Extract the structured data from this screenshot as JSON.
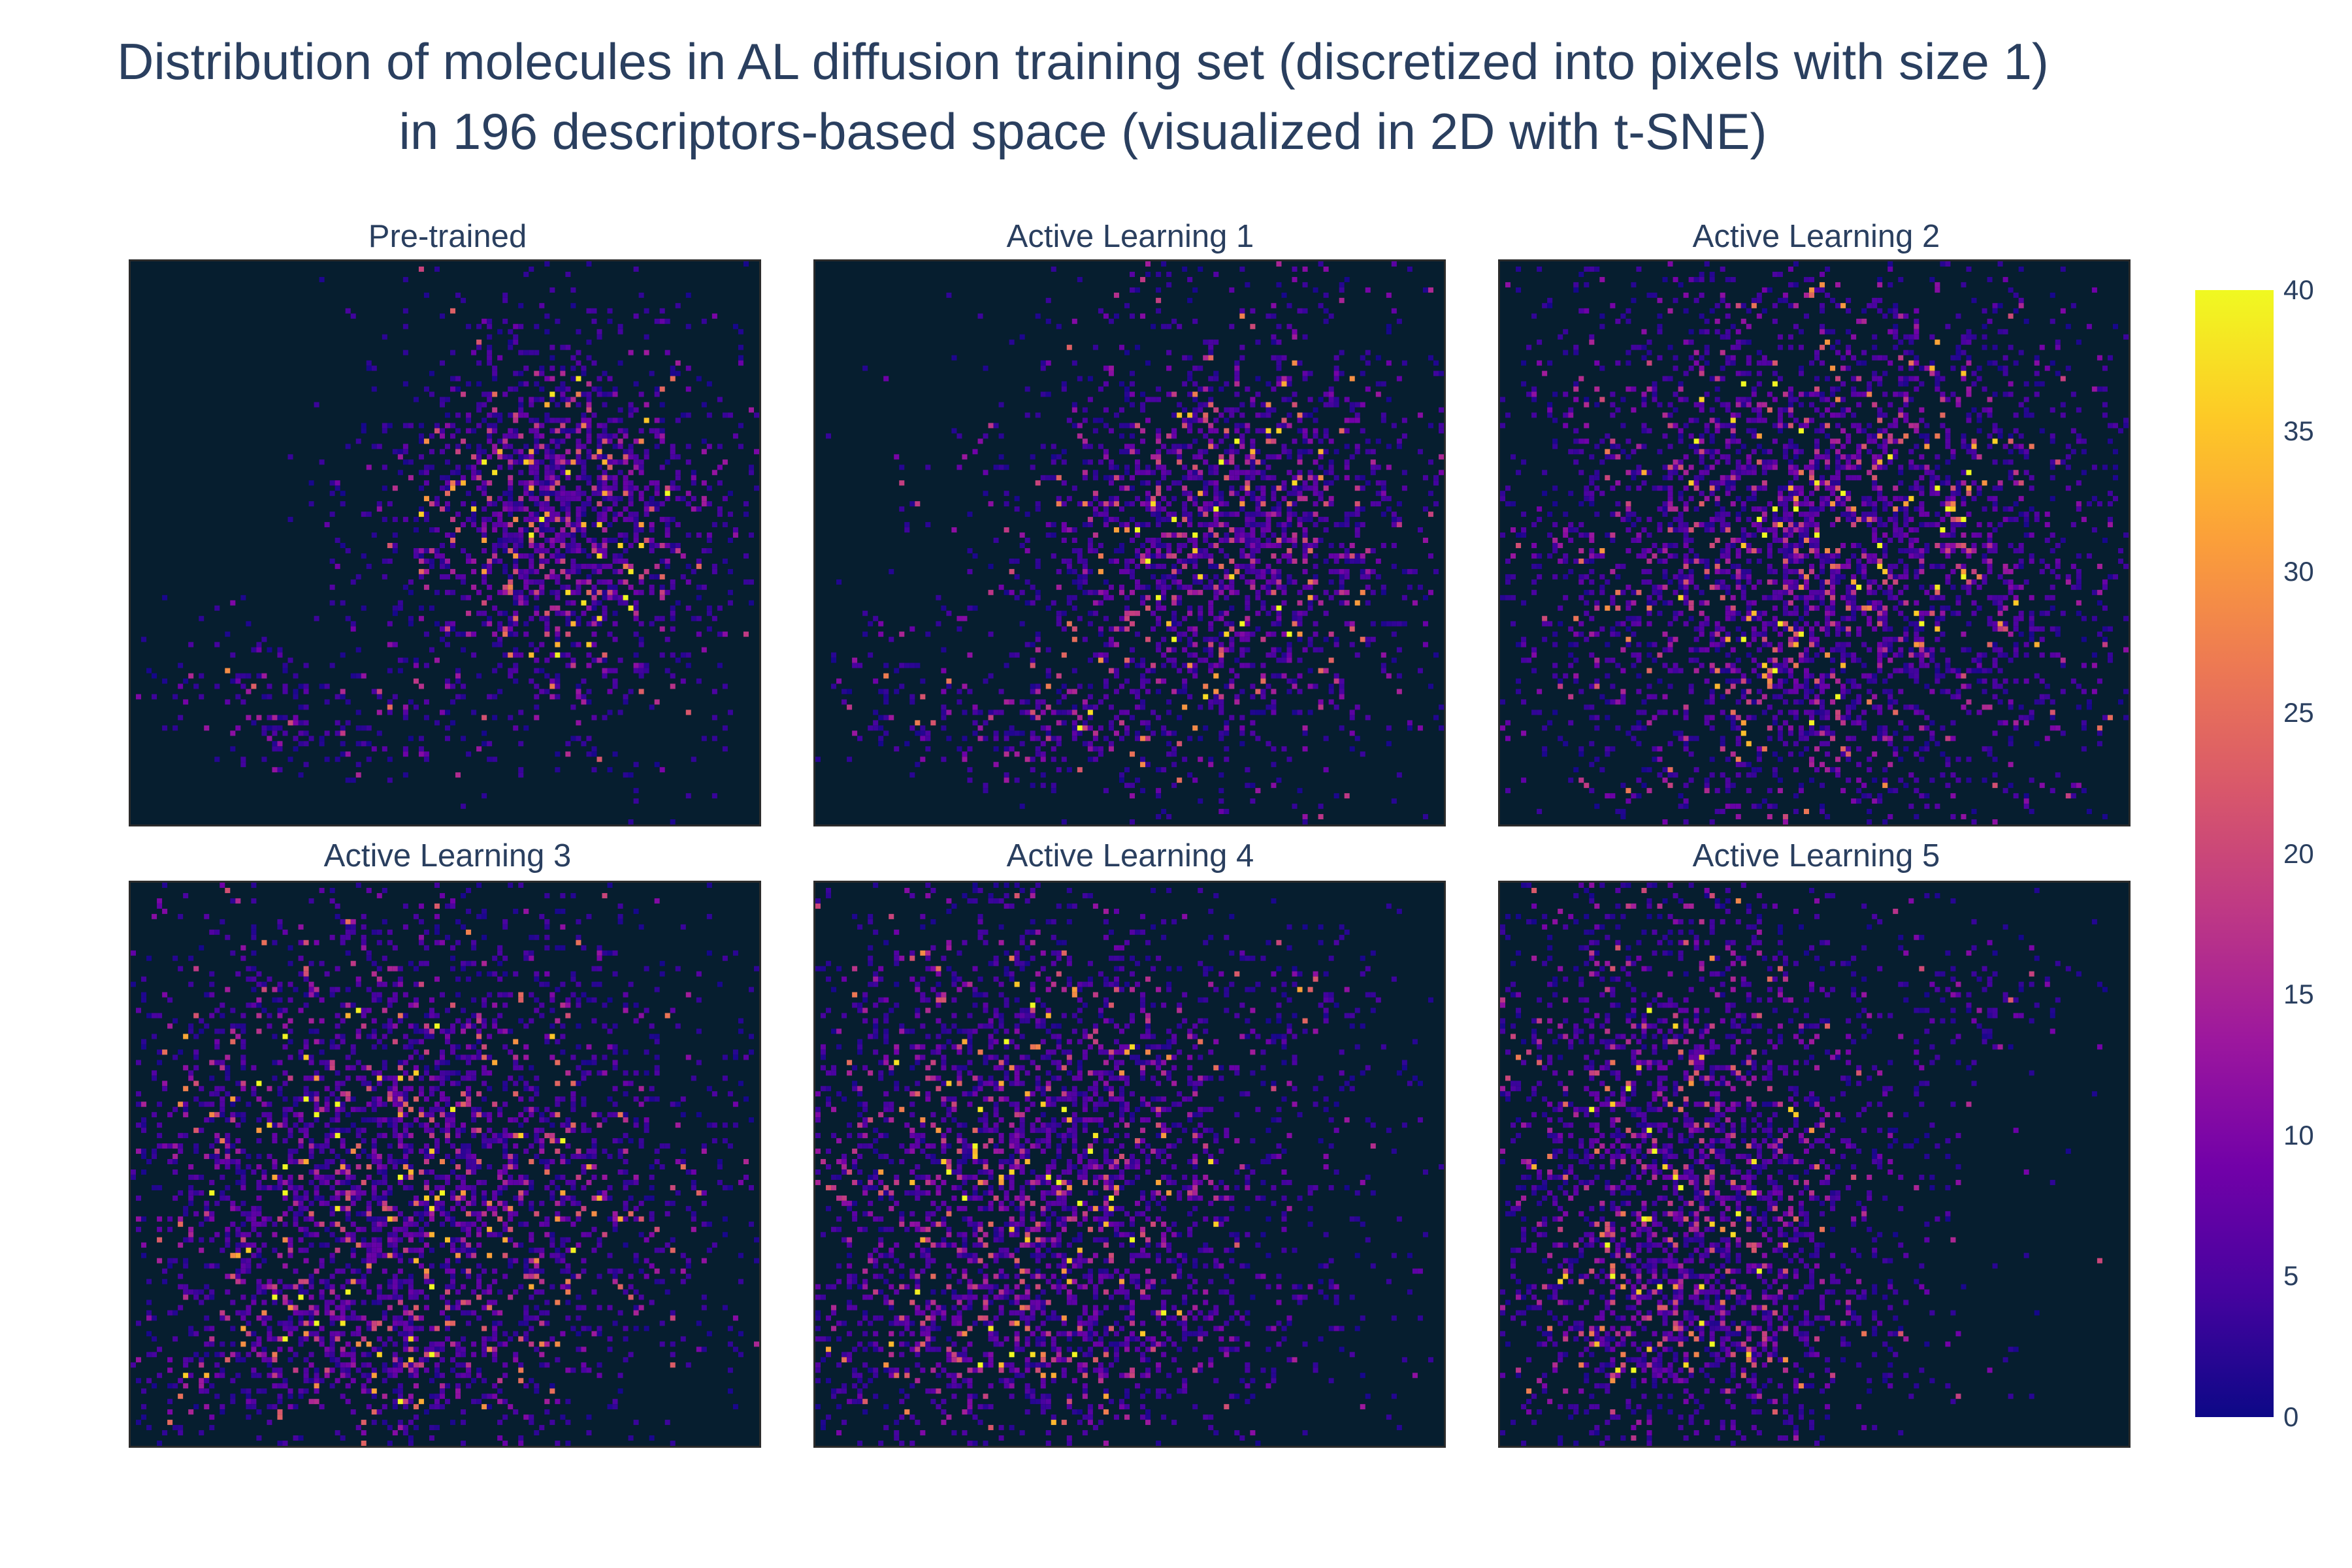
{
  "title": {
    "line1": "Distribution of molecules in AL diffusion training set (discretized into pixels with size 1)",
    "line2": "in 196 descriptors-based space (visualized in 2D with t-SNE)"
  },
  "colorbar": {
    "min": 0,
    "max": 40,
    "ticks": [
      "0",
      "5",
      "10",
      "15",
      "20",
      "25",
      "30",
      "35",
      "40"
    ],
    "colorscale": [
      "#0d0887",
      "#46039f",
      "#7201a8",
      "#9c179e",
      "#bd3786",
      "#d8576b",
      "#ed7953",
      "#fb9f3a",
      "#fdca26",
      "#f0f921"
    ],
    "zero_color": "#061e2f"
  },
  "chart_data": [
    {
      "type": "heatmap",
      "title": "Pre-trained",
      "seed": 11,
      "pattern": "right-cluster"
    },
    {
      "type": "heatmap",
      "title": "Active Learning 1",
      "seed": 23,
      "pattern": "right-cluster-spread"
    },
    {
      "type": "heatmap",
      "title": "Active Learning 2",
      "seed": 37,
      "pattern": "round-blob"
    },
    {
      "type": "heatmap",
      "title": "Active Learning 3",
      "seed": 41,
      "pattern": "round-blob-left"
    },
    {
      "type": "heatmap",
      "title": "Active Learning 4",
      "seed": 53,
      "pattern": "round-blob-left-arc"
    },
    {
      "type": "heatmap",
      "title": "Active Learning 5",
      "seed": 67,
      "pattern": "round-blob-left-arc-strong"
    }
  ]
}
